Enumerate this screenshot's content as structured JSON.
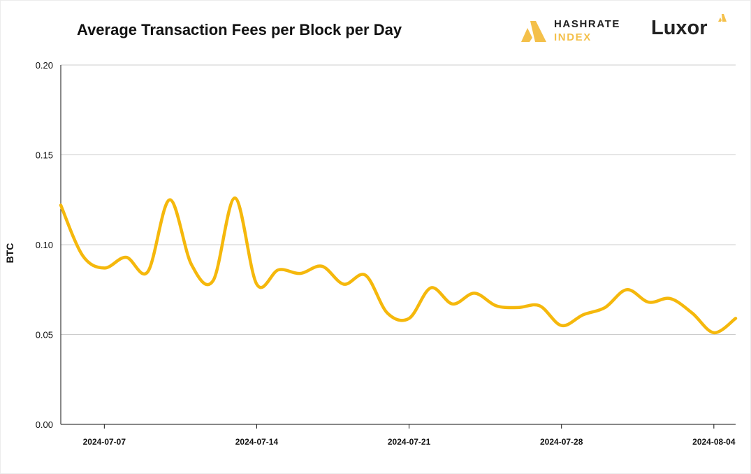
{
  "header": {
    "title": "Average Transaction Fees per Block per Day",
    "logos": {
      "hashrate_line1": "HASHRATE",
      "hashrate_line2": "INDEX",
      "luxor": "Luxor"
    }
  },
  "colors": {
    "line": "#f5b80c",
    "grid": "#cccccc",
    "axis": "#111111",
    "brand_yellow": "#f4c04a"
  },
  "chart_data": {
    "type": "line",
    "title": "Average Transaction Fees per Block per Day",
    "xlabel": "",
    "ylabel": "BTC",
    "ylim": [
      0,
      0.2
    ],
    "yticks": [
      "0.00",
      "0.05",
      "0.10",
      "0.15",
      "0.20"
    ],
    "xticks": [
      "2024-07-07",
      "2024-07-14",
      "2024-07-21",
      "2024-07-28",
      "2024-08-04"
    ],
    "grid": true,
    "x": [
      "2024-07-05",
      "2024-07-06",
      "2024-07-07",
      "2024-07-08",
      "2024-07-09",
      "2024-07-10",
      "2024-07-11",
      "2024-07-12",
      "2024-07-13",
      "2024-07-14",
      "2024-07-15",
      "2024-07-16",
      "2024-07-17",
      "2024-07-18",
      "2024-07-19",
      "2024-07-20",
      "2024-07-21",
      "2024-07-22",
      "2024-07-23",
      "2024-07-24",
      "2024-07-25",
      "2024-07-26",
      "2024-07-27",
      "2024-07-28",
      "2024-07-29",
      "2024-07-30",
      "2024-07-31",
      "2024-08-01",
      "2024-08-02",
      "2024-08-03",
      "2024-08-04",
      "2024-08-05"
    ],
    "series": [
      {
        "values": [
          0.122,
          0.094,
          0.087,
          0.093,
          0.085,
          0.125,
          0.089,
          0.08,
          0.126,
          0.078,
          0.086,
          0.084,
          0.088,
          0.078,
          0.083,
          0.062,
          0.059,
          0.076,
          0.067,
          0.073,
          0.066,
          0.065,
          0.066,
          0.055,
          0.061,
          0.065,
          0.075,
          0.068,
          0.07,
          0.062,
          0.051,
          0.059
        ]
      }
    ]
  }
}
